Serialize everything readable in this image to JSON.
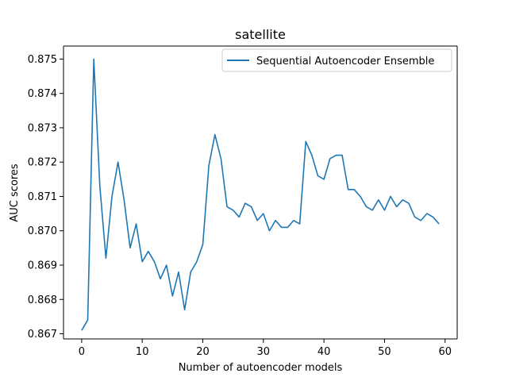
{
  "chart_data": {
    "type": "line",
    "title": "satellite",
    "xlabel": "Number of autoencoder models",
    "ylabel": "AUC scores",
    "xlim": [
      -3,
      62
    ],
    "ylim": [
      0.86685,
      0.87538
    ],
    "xticks": [
      0,
      10,
      20,
      30,
      40,
      50,
      60
    ],
    "xtick_labels": [
      "0",
      "10",
      "20",
      "30",
      "40",
      "50",
      "60"
    ],
    "yticks": [
      0.867,
      0.868,
      0.869,
      0.87,
      0.871,
      0.872,
      0.873,
      0.874,
      0.875
    ],
    "ytick_labels": [
      "0.867",
      "0.868",
      "0.869",
      "0.870",
      "0.871",
      "0.872",
      "0.873",
      "0.874",
      "0.875"
    ],
    "grid": false,
    "legend_position": "top-right",
    "series": [
      {
        "name": "Sequential Autoencoder Ensemble",
        "color": "#1f77b4",
        "x": [
          0,
          1,
          2,
          3,
          4,
          5,
          6,
          7,
          8,
          9,
          10,
          11,
          12,
          13,
          14,
          15,
          16,
          17,
          18,
          19,
          20,
          21,
          22,
          23,
          24,
          25,
          26,
          27,
          28,
          29,
          30,
          31,
          32,
          33,
          34,
          35,
          36,
          37,
          38,
          39,
          40,
          41,
          42,
          43,
          44,
          45,
          46,
          47,
          48,
          49,
          50,
          51,
          52,
          53,
          54,
          55,
          56,
          57,
          58,
          59
        ],
        "values": [
          0.8671,
          0.8674,
          0.875,
          0.8713,
          0.8692,
          0.871,
          0.872,
          0.8709,
          0.8695,
          0.8702,
          0.8691,
          0.8694,
          0.8691,
          0.8686,
          0.869,
          0.8681,
          0.8688,
          0.8677,
          0.8688,
          0.8691,
          0.8696,
          0.8719,
          0.8728,
          0.8721,
          0.8707,
          0.8706,
          0.8704,
          0.8708,
          0.8707,
          0.8703,
          0.8705,
          0.87,
          0.8703,
          0.8701,
          0.8701,
          0.8703,
          0.8702,
          0.8726,
          0.8722,
          0.8716,
          0.8715,
          0.8721,
          0.8722,
          0.8722,
          0.8712,
          0.8712,
          0.871,
          0.8707,
          0.8706,
          0.8709,
          0.8706,
          0.871,
          0.8707,
          0.8709,
          0.8708,
          0.8704,
          0.8703,
          0.8705,
          0.8704,
          0.8702
        ]
      }
    ]
  }
}
